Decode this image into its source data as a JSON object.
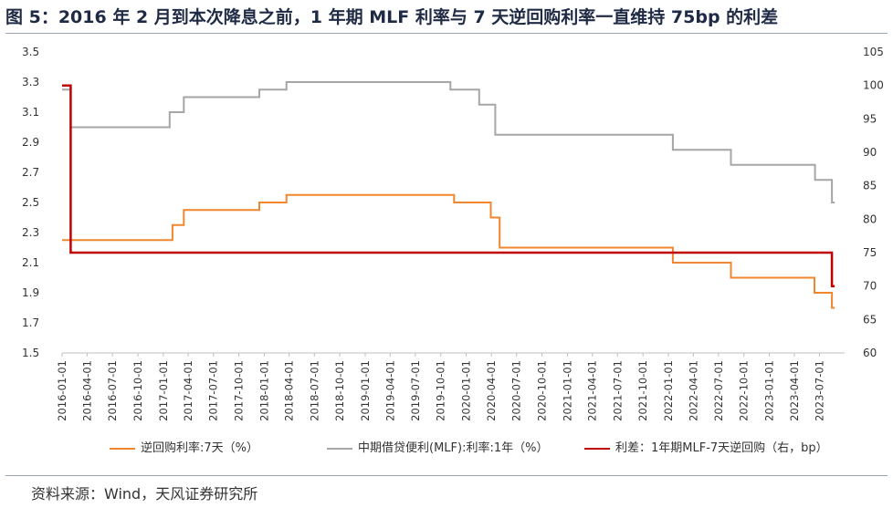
{
  "title": "图 5：2016 年 2 月到本次降息之前，1 年期 MLF 利率与 7 天逆回购利率一直维持 75bp 的利差",
  "source": "资料来源：Wind，天风证券研究所",
  "colors": {
    "reverse_repo": "#f0862e",
    "mlf": "#a6a6a6",
    "spread": "#c00000",
    "axis": "#bfbfbf",
    "text": "#333333"
  },
  "chart_data": {
    "type": "line",
    "x_ticks": [
      "2016-01-01",
      "2016-04-01",
      "2016-07-01",
      "2016-10-01",
      "2017-01-01",
      "2017-04-01",
      "2017-07-01",
      "2017-10-01",
      "2018-01-01",
      "2018-04-01",
      "2018-07-01",
      "2018-10-01",
      "2019-01-01",
      "2019-04-01",
      "2019-07-01",
      "2019-10-01",
      "2020-01-01",
      "2020-04-01",
      "2020-07-01",
      "2020-10-01",
      "2021-01-01",
      "2021-04-01",
      "2021-07-01",
      "2021-10-01",
      "2022-01-01",
      "2022-04-01",
      "2022-07-01",
      "2022-10-01",
      "2023-01-01",
      "2023-04-01",
      "2023-07-01"
    ],
    "xlim": [
      "2016-01-01",
      "2023-09-30"
    ],
    "y_left": {
      "ticks": [
        "3.5",
        "3.3",
        "3.1",
        "2.9",
        "2.7",
        "2.5",
        "2.3",
        "2.1",
        "1.9",
        "1.7",
        "1.5"
      ],
      "ylim": [
        1.5,
        3.5
      ]
    },
    "y_right": {
      "ticks": [
        "105",
        "100",
        "95",
        "90",
        "85",
        "80",
        "75",
        "70",
        "65",
        "60"
      ],
      "ylim": [
        60,
        105
      ]
    },
    "series": [
      {
        "name": "逆回购利率:7天（%）",
        "axis": "left",
        "points": [
          [
            "2016-01-01",
            2.25
          ],
          [
            "2017-02-03",
            2.35
          ],
          [
            "2017-03-16",
            2.45
          ],
          [
            "2017-12-14",
            2.5
          ],
          [
            "2018-03-22",
            2.55
          ],
          [
            "2019-11-18",
            2.5
          ],
          [
            "2020-03-30",
            2.4
          ],
          [
            "2020-05-01",
            2.2
          ],
          [
            "2022-01-17",
            2.1
          ],
          [
            "2022-08-15",
            2.0
          ],
          [
            "2023-06-13",
            1.9
          ],
          [
            "2023-08-15",
            1.8
          ]
        ]
      },
      {
        "name": "中期借贷便利(MLF):利率:1年（%）",
        "axis": "left",
        "points": [
          [
            "2016-01-01",
            3.25
          ],
          [
            "2016-02-01",
            3.0
          ],
          [
            "2017-01-24",
            3.1
          ],
          [
            "2017-03-16",
            3.2
          ],
          [
            "2017-12-14",
            3.25
          ],
          [
            "2018-03-22",
            3.3
          ],
          [
            "2019-11-05",
            3.25
          ],
          [
            "2020-02-17",
            3.15
          ],
          [
            "2020-04-15",
            2.95
          ],
          [
            "2022-01-17",
            2.85
          ],
          [
            "2022-08-15",
            2.75
          ],
          [
            "2023-06-15",
            2.65
          ],
          [
            "2023-08-15",
            2.5
          ]
        ]
      },
      {
        "name": "利差：1年期MLF-7天逆回购（右，bp）",
        "axis": "right",
        "points": [
          [
            "2016-01-01",
            100
          ],
          [
            "2016-02-01",
            75
          ],
          [
            "2023-08-14",
            75
          ],
          [
            "2023-08-15",
            70
          ]
        ]
      }
    ]
  }
}
